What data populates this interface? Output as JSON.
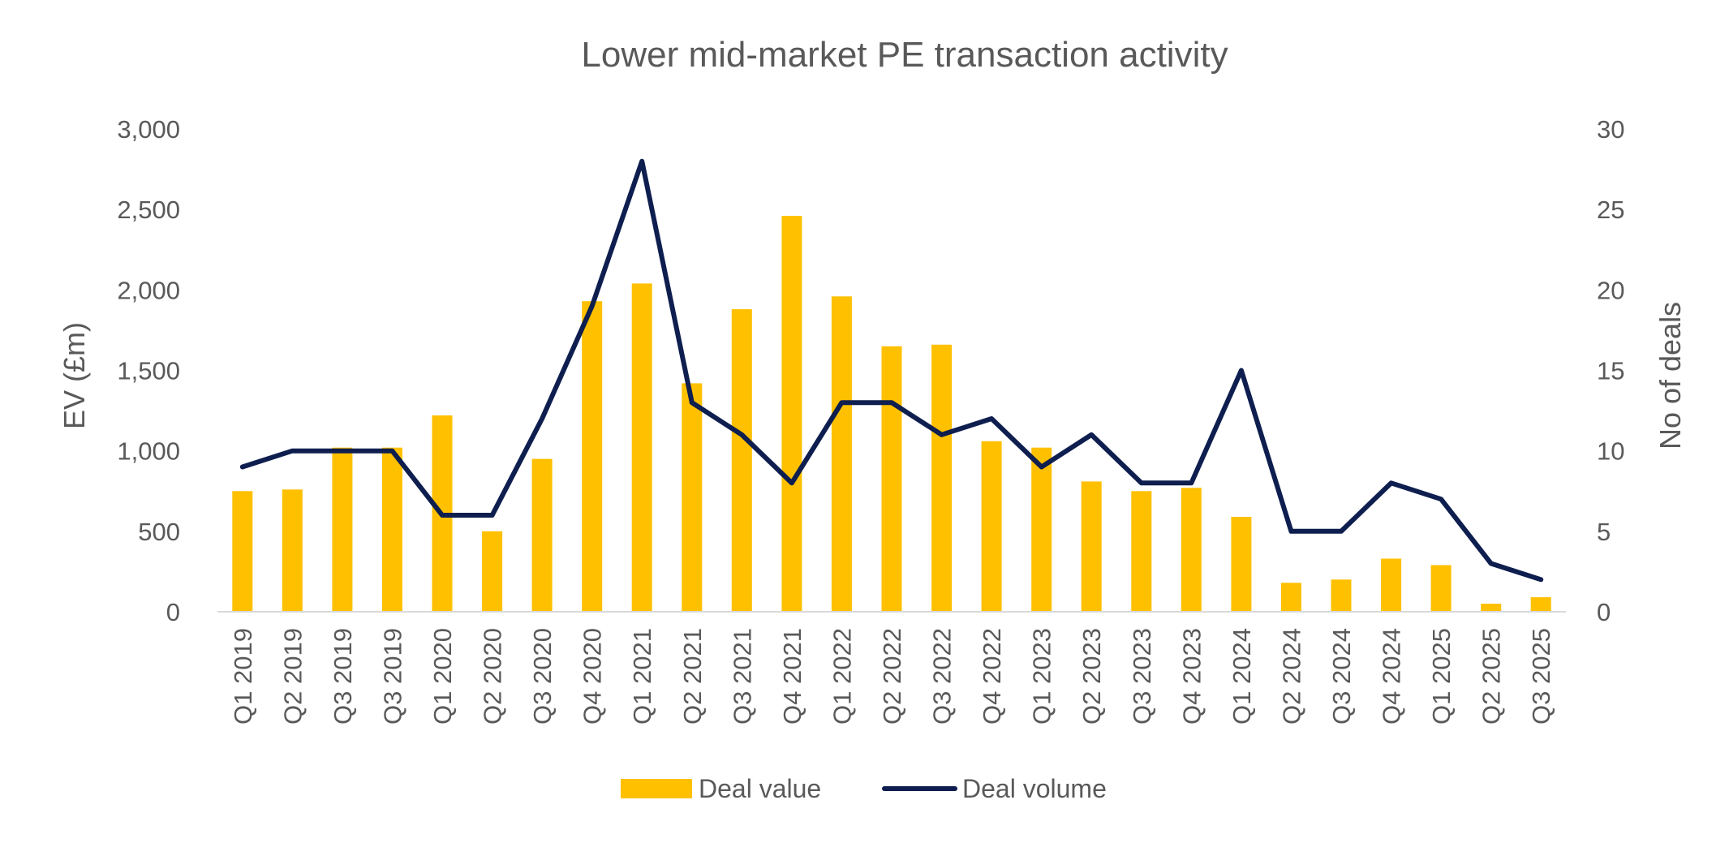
{
  "chart_data": {
    "type": "bar",
    "title": "Lower mid-market PE transaction activity",
    "ylabel": "EV (£m)",
    "y2label": "No of deals",
    "ylim": [
      0,
      3000
    ],
    "y2lim": [
      0,
      30
    ],
    "yticks": [
      "0",
      "500",
      "1,000",
      "1,500",
      "2,000",
      "2,500",
      "3,000"
    ],
    "y2ticks": [
      "0",
      "5",
      "10",
      "15",
      "20",
      "25",
      "30"
    ],
    "categories": [
      "Q1 2019",
      "Q2 2019",
      "Q3 2019",
      "Q3 2019",
      "Q1 2020",
      "Q2 2020",
      "Q3 2020",
      "Q4 2020",
      "Q1 2021",
      "Q2 2021",
      "Q3 2021",
      "Q4 2021",
      "Q1 2022",
      "Q2 2022",
      "Q3 2022",
      "Q4 2022",
      "Q1 2023",
      "Q2 2023",
      "Q3 2023",
      "Q4 2023",
      "Q1 2024",
      "Q2 2024",
      "Q3 2024",
      "Q4 2024",
      "Q1 2025",
      "Q2 2025",
      "Q3 2025"
    ],
    "series": [
      {
        "name": "Deal value",
        "type": "bar",
        "axis": "left",
        "color": "#FFC000",
        "values": [
          750,
          760,
          1020,
          1020,
          1220,
          500,
          950,
          1930,
          2040,
          1420,
          1880,
          2460,
          1960,
          1650,
          1660,
          1060,
          1020,
          810,
          750,
          770,
          590,
          180,
          200,
          330,
          290,
          50,
          90
        ]
      },
      {
        "name": "Deal volume",
        "type": "line",
        "axis": "right",
        "color": "#0E1E4F",
        "values": [
          9,
          10,
          10,
          10,
          6,
          6,
          12,
          19,
          28,
          13,
          11,
          8,
          13,
          13,
          11,
          12,
          9,
          11,
          8,
          8,
          15,
          5,
          5,
          8,
          7,
          3,
          2
        ]
      }
    ],
    "legend_position": "bottom",
    "grid": false
  }
}
